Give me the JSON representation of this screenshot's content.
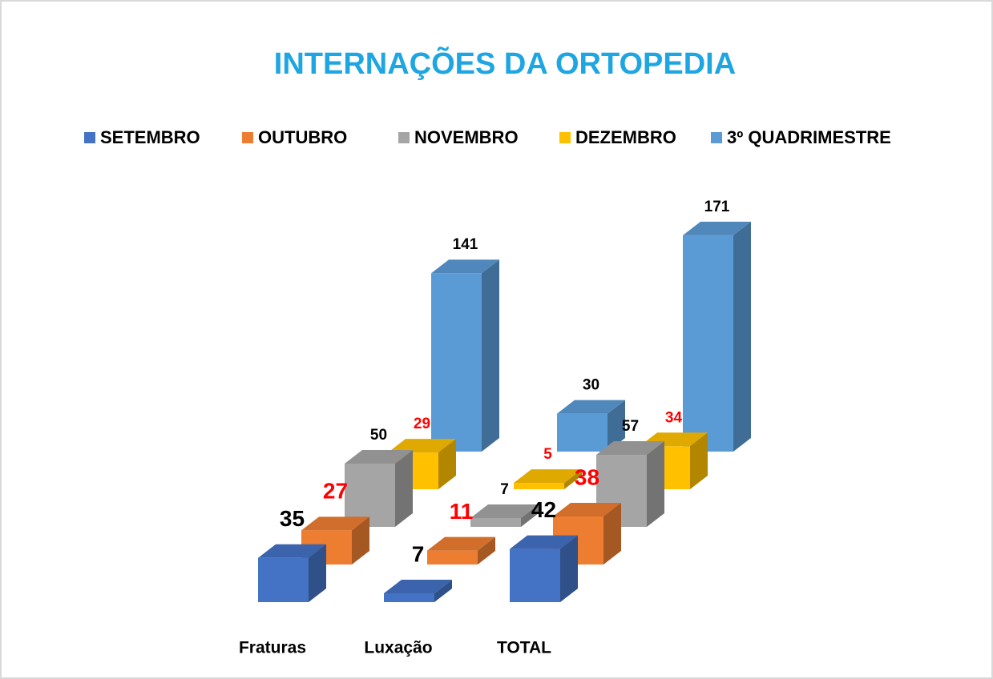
{
  "chart_data": {
    "type": "bar3d",
    "title": "INTERNAÇÕES DA ORTOPEDIA",
    "categories": [
      "Fraturas",
      "Luxação",
      "TOTAL"
    ],
    "series": [
      {
        "name": "SETEMBRO",
        "color": "#4472c4",
        "label_color": "#000000",
        "values": [
          35,
          7,
          42
        ]
      },
      {
        "name": "OUTUBRO",
        "color": "#ed7d31",
        "label_color": "#ff0000",
        "values": [
          27,
          11,
          38
        ]
      },
      {
        "name": "NOVEMBRO",
        "color": "#a5a5a5",
        "label_color": "#000000",
        "values": [
          50,
          7,
          57
        ]
      },
      {
        "name": "DEZEMBRO",
        "color": "#ffc000",
        "label_color": "#ff0000",
        "values": [
          29,
          5,
          34
        ]
      },
      {
        "name": "3º QUADRIMESTRE",
        "color": "#5b9bd5",
        "label_color": "#000000",
        "values": [
          141,
          30,
          171
        ]
      }
    ]
  }
}
